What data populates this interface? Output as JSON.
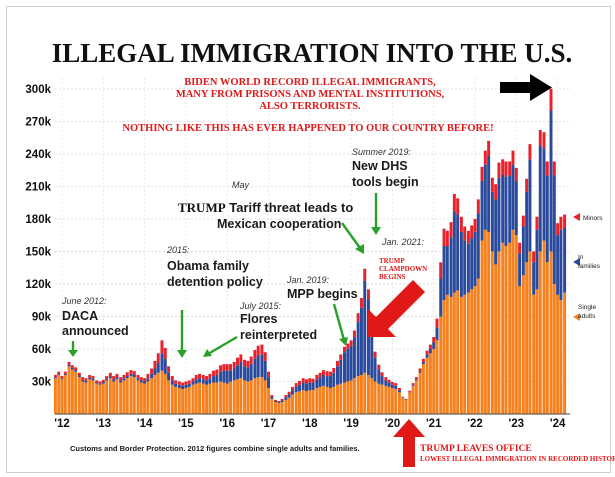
{
  "chart_data": {
    "type": "bar",
    "stacked": true,
    "title": "ILLEGAL IMMIGRATION INTO THE U.S.",
    "y_ticks": [
      "30k",
      "60k",
      "90k",
      "120k",
      "150k",
      "180k",
      "210k",
      "240k",
      "270k",
      "300k"
    ],
    "ylim": [
      0,
      310000
    ],
    "x_ticks": [
      "'12",
      "'13",
      "'14",
      "'15",
      "'16",
      "'17",
      "'18",
      "'19",
      "'20",
      "'21",
      "'22",
      "'23",
      "'24"
    ],
    "x_start": 2011.83,
    "x_end": 2024.3,
    "grid": true,
    "series": [
      {
        "name": "Single adults",
        "color": "#f5821f"
      },
      {
        "name": "In families",
        "color": "#2a4a9c"
      },
      {
        "name": "Minors",
        "color": "#e8222a"
      }
    ],
    "points": [
      [
        2011.84,
        33000,
        1000,
        2000
      ],
      [
        2011.92,
        36000,
        1000,
        2000
      ],
      [
        2012.0,
        32000,
        1000,
        2000
      ],
      [
        2012.08,
        36000,
        1000,
        2000
      ],
      [
        2012.17,
        44000,
        1500,
        2500
      ],
      [
        2012.25,
        41000,
        1500,
        2500
      ],
      [
        2012.33,
        39000,
        1500,
        2500
      ],
      [
        2012.42,
        34000,
        1500,
        2500
      ],
      [
        2012.5,
        30000,
        1500,
        2500
      ],
      [
        2012.58,
        29000,
        1500,
        2500
      ],
      [
        2012.67,
        32000,
        1500,
        2500
      ],
      [
        2012.75,
        31000,
        1500,
        2500
      ],
      [
        2012.84,
        28000,
        1000,
        2000
      ],
      [
        2012.92,
        27000,
        1000,
        2000
      ],
      [
        2013.0,
        28000,
        1500,
        2000
      ],
      [
        2013.08,
        31000,
        1500,
        2500
      ],
      [
        2013.17,
        33000,
        2000,
        3000
      ],
      [
        2013.25,
        30000,
        2000,
        3000
      ],
      [
        2013.33,
        32000,
        2000,
        3000
      ],
      [
        2013.42,
        29000,
        2000,
        3000
      ],
      [
        2013.5,
        31000,
        2000,
        3000
      ],
      [
        2013.58,
        33000,
        2000,
        3500
      ],
      [
        2013.67,
        35000,
        2000,
        3500
      ],
      [
        2013.75,
        34000,
        2000,
        3500
      ],
      [
        2013.84,
        31000,
        2000,
        3000
      ],
      [
        2013.92,
        29000,
        2000,
        3000
      ],
      [
        2014.0,
        28000,
        2000,
        3000
      ],
      [
        2014.08,
        30000,
        3000,
        4000
      ],
      [
        2014.17,
        33000,
        4000,
        5000
      ],
      [
        2014.25,
        36000,
        6000,
        7000
      ],
      [
        2014.33,
        38000,
        9000,
        9000
      ],
      [
        2014.42,
        40000,
        16000,
        12000
      ],
      [
        2014.5,
        37000,
        14000,
        10000
      ],
      [
        2014.58,
        31000,
        7000,
        6000
      ],
      [
        2014.67,
        27000,
        4000,
        4000
      ],
      [
        2014.75,
        25000,
        3000,
        3000
      ],
      [
        2014.84,
        24000,
        3000,
        3000
      ],
      [
        2014.92,
        23000,
        3000,
        3000
      ],
      [
        2015.0,
        24000,
        3000,
        3000
      ],
      [
        2015.08,
        25000,
        3000,
        3000
      ],
      [
        2015.17,
        27000,
        3000,
        3000
      ],
      [
        2015.25,
        28000,
        4000,
        4000
      ],
      [
        2015.33,
        29000,
        4000,
        4000
      ],
      [
        2015.42,
        28000,
        4000,
        4000
      ],
      [
        2015.5,
        27000,
        4000,
        4000
      ],
      [
        2015.58,
        28000,
        5000,
        4000
      ],
      [
        2015.67,
        29000,
        6000,
        5000
      ],
      [
        2015.75,
        29000,
        7000,
        5000
      ],
      [
        2015.84,
        30000,
        9000,
        6000
      ],
      [
        2015.92,
        29000,
        11000,
        6000
      ],
      [
        2016.0,
        28000,
        12000,
        6000
      ],
      [
        2016.08,
        30000,
        10000,
        6000
      ],
      [
        2016.17,
        31000,
        11000,
        6000
      ],
      [
        2016.25,
        32000,
        13000,
        7000
      ],
      [
        2016.33,
        33000,
        15000,
        7000
      ],
      [
        2016.42,
        31000,
        13000,
        6000
      ],
      [
        2016.5,
        30000,
        13000,
        6000
      ],
      [
        2016.58,
        31000,
        15000,
        7000
      ],
      [
        2016.67,
        33000,
        18000,
        8000
      ],
      [
        2016.75,
        34000,
        20000,
        9000
      ],
      [
        2016.84,
        34000,
        21000,
        9000
      ],
      [
        2016.92,
        31000,
        18000,
        8000
      ],
      [
        2017.0,
        24000,
        10000,
        5000
      ],
      [
        2017.08,
        14000,
        2000,
        1500
      ],
      [
        2017.17,
        11000,
        1000,
        1000
      ],
      [
        2017.25,
        10000,
        1000,
        1000
      ],
      [
        2017.33,
        11000,
        1500,
        1500
      ],
      [
        2017.42,
        13000,
        2500,
        2000
      ],
      [
        2017.5,
        15000,
        3000,
        2500
      ],
      [
        2017.58,
        18000,
        4000,
        3000
      ],
      [
        2017.67,
        20000,
        5000,
        3500
      ],
      [
        2017.75,
        21000,
        6000,
        3500
      ],
      [
        2017.84,
        22000,
        7000,
        4000
      ],
      [
        2017.92,
        21000,
        7000,
        4000
      ],
      [
        2018.0,
        22000,
        7000,
        4000
      ],
      [
        2018.08,
        22000,
        7000,
        3500
      ],
      [
        2018.17,
        24000,
        8000,
        4000
      ],
      [
        2018.25,
        25000,
        9000,
        4000
      ],
      [
        2018.33,
        26000,
        10000,
        4500
      ],
      [
        2018.42,
        25000,
        10000,
        4500
      ],
      [
        2018.5,
        24000,
        11000,
        4000
      ],
      [
        2018.58,
        25000,
        13000,
        4500
      ],
      [
        2018.67,
        27000,
        17000,
        5000
      ],
      [
        2018.75,
        28000,
        22000,
        5000
      ],
      [
        2018.84,
        29000,
        28000,
        5000
      ],
      [
        2018.92,
        30000,
        30000,
        5000
      ],
      [
        2019.0,
        31000,
        32000,
        5000
      ],
      [
        2019.08,
        33000,
        38000,
        6000
      ],
      [
        2019.17,
        35000,
        50000,
        8000
      ],
      [
        2019.25,
        36000,
        62000,
        9000
      ],
      [
        2019.33,
        38000,
        85000,
        11000
      ],
      [
        2019.42,
        36000,
        70000,
        9000
      ],
      [
        2019.5,
        33000,
        38000,
        7000
      ],
      [
        2019.58,
        30000,
        22000,
        5500
      ],
      [
        2019.67,
        28000,
        13000,
        4500
      ],
      [
        2019.75,
        27000,
        8000,
        3500
      ],
      [
        2019.84,
        26000,
        5000,
        3000
      ],
      [
        2019.92,
        25000,
        4000,
        2500
      ],
      [
        2020.0,
        24000,
        3000,
        2500
      ],
      [
        2020.08,
        23000,
        3000,
        2500
      ],
      [
        2020.17,
        20000,
        2000,
        2000
      ],
      [
        2020.25,
        15000,
        500,
        500
      ],
      [
        2020.33,
        13000,
        500,
        500
      ],
      [
        2020.42,
        20000,
        500,
        1000
      ],
      [
        2020.5,
        26000,
        1000,
        1500
      ],
      [
        2020.58,
        31000,
        1000,
        2000
      ],
      [
        2020.67,
        38000,
        1500,
        2500
      ],
      [
        2020.75,
        46000,
        2000,
        3000
      ],
      [
        2020.84,
        52000,
        3000,
        3500
      ],
      [
        2020.92,
        56000,
        4000,
        4000
      ],
      [
        2021.0,
        60000,
        6000,
        5000
      ],
      [
        2021.08,
        68000,
        12000,
        8000
      ],
      [
        2021.17,
        90000,
        35000,
        15000
      ],
      [
        2021.25,
        105000,
        50000,
        16000
      ],
      [
        2021.33,
        110000,
        45000,
        14000
      ],
      [
        2021.42,
        108000,
        55000,
        14000
      ],
      [
        2021.5,
        112000,
        75000,
        16000
      ],
      [
        2021.58,
        114000,
        70000,
        15000
      ],
      [
        2021.67,
        108000,
        60000,
        14000
      ],
      [
        2021.75,
        110000,
        50000,
        13000
      ],
      [
        2021.84,
        112000,
        45000,
        12000
      ],
      [
        2021.92,
        115000,
        47000,
        12000
      ],
      [
        2022.0,
        118000,
        50000,
        12000
      ],
      [
        2022.08,
        125000,
        60000,
        13000
      ],
      [
        2022.17,
        160000,
        55000,
        13000
      ],
      [
        2022.25,
        170000,
        60000,
        13000
      ],
      [
        2022.33,
        168000,
        70000,
        14000
      ],
      [
        2022.42,
        150000,
        55000,
        13000
      ],
      [
        2022.5,
        138000,
        60000,
        14000
      ],
      [
        2022.58,
        150000,
        68000,
        14000
      ],
      [
        2022.67,
        158000,
        63000,
        14000
      ],
      [
        2022.75,
        155000,
        64000,
        14000
      ],
      [
        2022.84,
        158000,
        62000,
        13000
      ],
      [
        2022.92,
        170000,
        60000,
        13000
      ],
      [
        2023.0,
        165000,
        50000,
        12000
      ],
      [
        2023.08,
        118000,
        30000,
        10000
      ],
      [
        2023.17,
        128000,
        45000,
        10000
      ],
      [
        2023.25,
        140000,
        65000,
        12000
      ],
      [
        2023.33,
        150000,
        85000,
        14000
      ],
      [
        2023.42,
        110000,
        30000,
        10000
      ],
      [
        2023.5,
        115000,
        55000,
        12000
      ],
      [
        2023.58,
        150000,
        98000,
        14000
      ],
      [
        2023.67,
        160000,
        85000,
        15000
      ],
      [
        2023.75,
        140000,
        80000,
        13000
      ],
      [
        2023.84,
        150000,
        130000,
        20000
      ],
      [
        2023.92,
        120000,
        100000,
        13000
      ],
      [
        2024.0,
        110000,
        55000,
        11000
      ],
      [
        2024.08,
        105000,
        65000,
        12000
      ],
      [
        2024.17,
        112000,
        60000,
        12000
      ]
    ],
    "legend": {
      "placement": "right",
      "entries": [
        "Minors",
        "In families",
        "Single adults"
      ]
    },
    "headline": [
      "BIDEN WORLD RECORD ILLEGAL IMMIGRANTS,",
      "MANY FROM PRISONS AND MENTAL INSTITUTIONS,",
      "ALSO TERRORISTS."
    ],
    "headline2": "NOTHING LIKE THIS HAS EVER HAPPENED TO OUR COUNTRY BEFORE!",
    "annotations": {
      "daca_date": "June 2012:",
      "daca_1": "DACA",
      "daca_2": "announced",
      "obama_date": "2015:",
      "obama_1": "Obama family",
      "obama_2": "detention policy",
      "flores_date": "July 2015:",
      "flores_1": "Flores",
      "flores_2": "reinterpreted",
      "may": "May",
      "tariff_trump": "TRUMP",
      "tariff_1": " Tariff threat leads to",
      "tariff_2": "Mexican cooperation",
      "summer_date": "Summer 2019:",
      "dhs_1": "New DHS",
      "dhs_2": "tools begin",
      "mpp_date": "Jan. 2019:",
      "mpp": "MPP begins",
      "jan2021": "Jan. 2021:",
      "clamp_1": "TRUMP",
      "clamp_2": "CLAMPDOWN",
      "clamp_3": "BEGINS",
      "leaves_1": "TRUMP LEAVES OFFICE",
      "leaves_2": "LOWEST ILLEGAL IMMIGRATION IN RECORDED HISTORY!"
    },
    "source": "Customs and Border Protection. 2012 figures combine single adults and families."
  },
  "colors": {
    "single": "#f5821f",
    "families": "#2a4a9c",
    "minors": "#e8222a",
    "accent_red": "#e01818"
  }
}
